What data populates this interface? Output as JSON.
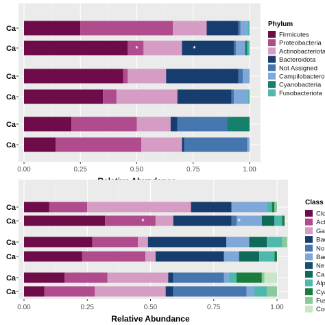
{
  "chart_data": [
    {
      "type": "bar",
      "orientation": "horizontal",
      "stacked": true,
      "categories": [
        "Ca",
        "Ca",
        "Ca",
        "Ca",
        "Ca",
        "Ca"
      ],
      "series": [
        {
          "name": "Firmicutes",
          "color": "#6d0c48",
          "values": [
            0.25,
            0.46,
            0.44,
            0.35,
            0.21,
            0.14
          ]
        },
        {
          "name": "Proteobacteria",
          "color": "#b04c8d",
          "values": [
            0.41,
            0.07,
            0.02,
            0.06,
            0.29,
            0.38
          ]
        },
        {
          "name": "Actinobacteriota",
          "color": "#d59dc3",
          "values": [
            0.15,
            0.17,
            0.17,
            0.27,
            0.15,
            0.18
          ]
        },
        {
          "name": "Bacteroidota",
          "color": "#173d6e",
          "values": [
            0.14,
            0.23,
            0.32,
            0.24,
            0.03,
            0.01
          ]
        },
        {
          "name": "Not Assigned",
          "color": "#4576ad",
          "values": [
            0.01,
            0.01,
            0.02,
            0.01,
            0.22,
            0.28
          ]
        },
        {
          "name": "Campilobacterota",
          "color": "#7fa7d8",
          "values": [
            0.03,
            0.04,
            0.03,
            0.06,
            0.0,
            0.01
          ]
        },
        {
          "name": "Cyanobacteria",
          "color": "#15806b",
          "values": [
            0.0,
            0.01,
            0.0,
            0.0,
            0.1,
            0.0
          ]
        },
        {
          "name": "Fusobacteriota",
          "color": "#4fb8ad",
          "values": [
            0.01,
            0.01,
            0.0,
            0.01,
            0.0,
            0.0
          ]
        }
      ],
      "annotations": [
        {
          "row": 1,
          "x": 0.5,
          "text": "*"
        },
        {
          "row": 1,
          "x": 0.755,
          "text": "*"
        }
      ],
      "xlabel": "Relative Abundance",
      "xlim": [
        0,
        1
      ],
      "xticks": [
        "0.00",
        "0.25",
        "0.50",
        "0.75",
        "1.00"
      ],
      "legend_title": "Phylum",
      "legend_position": "right",
      "grid": true
    },
    {
      "type": "bar",
      "orientation": "horizontal",
      "stacked": true,
      "categories": [
        "Ca",
        "Ca",
        "Ca",
        "Ca",
        "Ca",
        "Ca"
      ],
      "series": [
        {
          "name": "Clo",
          "color": "#6d0c48",
          "values": [
            0.1,
            0.32,
            0.27,
            0.23,
            0.16,
            0.08
          ]
        },
        {
          "name": "Acti",
          "color": "#b04c8d",
          "values": [
            0.15,
            0.2,
            0.18,
            0.25,
            0.17,
            0.2
          ]
        },
        {
          "name": "Gar",
          "color": "#d59dc3",
          "values": [
            0.41,
            0.07,
            0.04,
            0.04,
            0.24,
            0.28
          ]
        },
        {
          "name": "Bac",
          "color": "#173d6e",
          "values": [
            0.16,
            0.23,
            0.31,
            0.27,
            0.02,
            0.03
          ]
        },
        {
          "name": "No",
          "color": "#4576ad",
          "values": [
            0.0,
            0.02,
            0.0,
            0.0,
            0.2,
            0.29
          ]
        },
        {
          "name": "Bac",
          "color": "#7fa7d8",
          "values": [
            0.14,
            0.1,
            0.09,
            0.06,
            0.02,
            0.03
          ]
        },
        {
          "name": "Ne",
          "color": "#17506f",
          "values": [
            0.0,
            0.0,
            0.0,
            0.0,
            0.0,
            0.0
          ]
        },
        {
          "name": "Ca",
          "color": "#0f6b57",
          "values": [
            0.0,
            0.05,
            0.07,
            0.08,
            0.0,
            0.0
          ]
        },
        {
          "name": "Alp",
          "color": "#4fb8ad",
          "values": [
            0.02,
            0.03,
            0.06,
            0.06,
            0.03,
            0.05
          ]
        },
        {
          "name": "Cya",
          "color": "#1b7c3f",
          "values": [
            0.01,
            0.01,
            0.0,
            0.01,
            0.1,
            0.0
          ]
        },
        {
          "name": "Fus",
          "color": "#88c99d",
          "values": [
            0.01,
            0.0,
            0.02,
            0.0,
            0.01,
            0.04
          ]
        },
        {
          "name": "Cor",
          "color": "#c9e6c5",
          "values": [
            0.0,
            0.0,
            0.0,
            0.0,
            0.05,
            0.0
          ]
        }
      ],
      "annotations": [
        {
          "row": 1,
          "x": 0.47,
          "text": "*"
        },
        {
          "row": 1,
          "x": 0.85,
          "text": "*"
        }
      ],
      "xlabel": "Relative Abundance",
      "xlim": [
        0,
        1
      ],
      "xticks": [
        "0.00",
        "0.25",
        "0.50",
        "0.75",
        "1.00"
      ],
      "legend_title": "Class",
      "legend_position": "right",
      "grid": true
    }
  ]
}
